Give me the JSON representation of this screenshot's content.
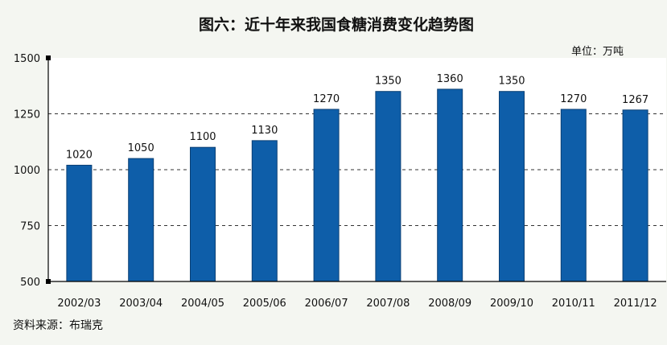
{
  "chart_data": {
    "type": "bar",
    "title": "图六：近十年来我国食糖消费变化趋势图",
    "unit": "单位：万吨",
    "source": "资料来源：布瑞克",
    "categories": [
      "2002/03",
      "2003/04",
      "2004/05",
      "2005/06",
      "2006/07",
      "2007/08",
      "2008/09",
      "2009/10",
      "2010/11",
      "2011/12"
    ],
    "series": [
      {
        "values": [
          1020,
          1050,
          1100,
          1130,
          1270,
          1350,
          1360,
          1350,
          1270,
          1267
        ]
      }
    ],
    "data_labels": [
      "1020",
      "1050",
      "1100",
      "1130",
      "1270",
      "1350",
      "1360",
      "1350",
      "1270",
      "1267"
    ],
    "ylim": [
      500,
      1500
    ],
    "yticks": [
      "500",
      "750",
      "1000",
      "1250",
      "1500"
    ],
    "grid": true,
    "colors": {
      "bar": "#0e5ea9",
      "bar_edge": "#0a3f74"
    }
  }
}
